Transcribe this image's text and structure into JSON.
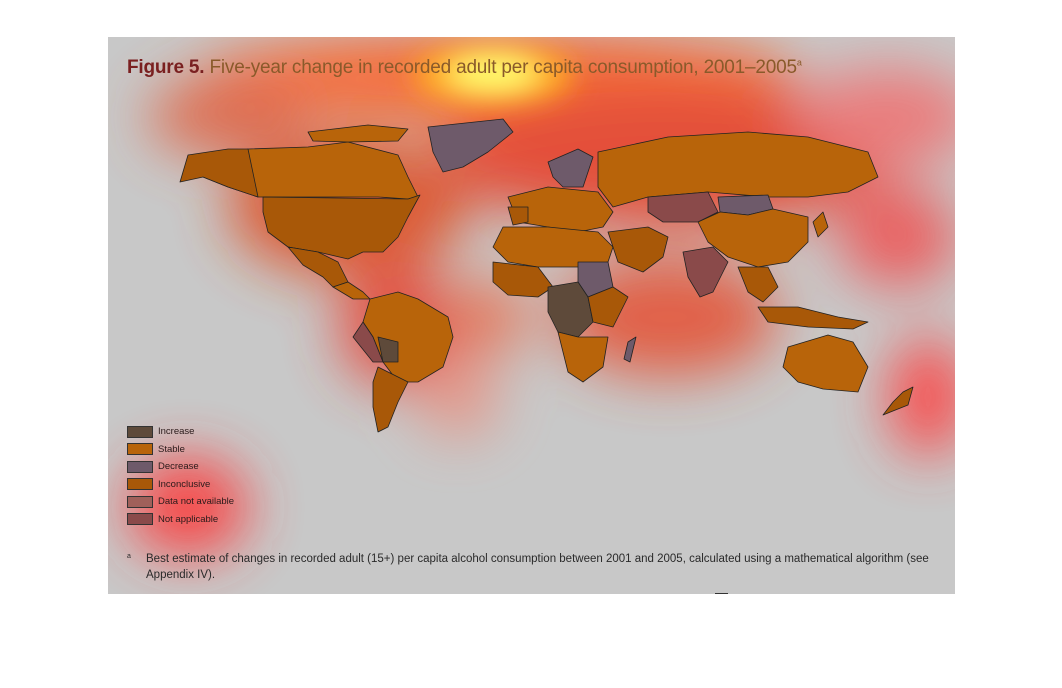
{
  "figure": {
    "number": "Figure 5.",
    "title": " Five-year change in recorded adult per capita consumption, 2001–2005",
    "title_superscript": "a"
  },
  "legend": [
    {
      "label": "Increase",
      "color": "#5e4a3a"
    },
    {
      "label": "Stable",
      "color": "#b8640a"
    },
    {
      "label": "Decrease",
      "color": "#6e5a6a"
    },
    {
      "label": "Inconclusive",
      "color": "#a85808"
    },
    {
      "label": "Data not available",
      "color": "#a0605a"
    },
    {
      "label": "Not applicable",
      "color": "#8a4a4a"
    }
  ],
  "footnote": {
    "marker": "a",
    "text": "Best estimate of changes in recorded adult (15+) per capita alcohol consumption between 2001 and 2005, calculated using a mathematical algorithm (see Appendix IV)."
  },
  "colors": {
    "background": "#c8c8c8",
    "heat_hot": "#ffff60",
    "heat_warm": "#ff3a20",
    "country_border": "#222222"
  }
}
